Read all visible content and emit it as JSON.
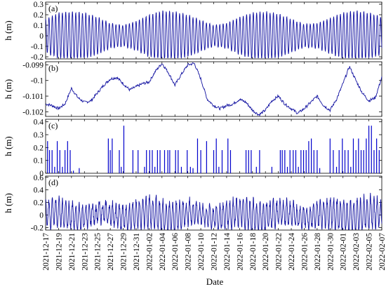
{
  "chart_data": [
    {
      "type": "line",
      "panel_label": "(a)",
      "ylabel": "h (m)",
      "ylim": [
        -0.22,
        0.32
      ],
      "yticks": [
        -0.2,
        -0.1,
        0,
        0.1,
        0.2,
        0.3
      ],
      "ytick_labels": [
        "-0.2",
        "-0.1",
        "0",
        "0.1",
        "0.2",
        "0.3"
      ],
      "series_color": "#1010a0",
      "series": [
        {
          "description_of_pattern": "semi-diurnal tide, spring/neap amplitude modulation",
          "x": [
            0,
            2,
            4,
            6,
            8,
            10,
            12,
            14,
            16,
            18,
            20,
            22,
            24,
            26,
            28,
            30,
            32,
            34,
            36,
            38,
            40,
            42,
            44,
            46,
            48,
            50,
            52
          ],
          "envelope": [
            0.16,
            0.22,
            0.23,
            0.22,
            0.18,
            0.12,
            0.1,
            0.14,
            0.2,
            0.24,
            0.23,
            0.2,
            0.15,
            0.1,
            0.12,
            0.18,
            0.22,
            0.23,
            0.21,
            0.16,
            0.11,
            0.12,
            0.17,
            0.22,
            0.24,
            0.22,
            0.18
          ]
        }
      ]
    },
    {
      "type": "line",
      "panel_label": "(b)",
      "ylabel": "h (m)",
      "ylim": [
        -0.1023,
        -0.0988
      ],
      "yticks": [
        -0.102,
        -0.101,
        -0.1,
        -0.099
      ],
      "ytick_labels": [
        "-0.102",
        "-0.101",
        "-0.1",
        "-0.099"
      ],
      "series_color": "#1010a0",
      "series": [
        {
          "x": [
            0,
            1,
            2,
            3,
            4,
            5,
            6,
            7,
            8,
            9,
            10,
            11,
            12,
            13,
            14,
            15,
            16,
            17,
            18,
            19,
            20,
            21,
            22,
            23,
            24,
            25,
            26,
            27,
            28,
            29,
            30,
            31,
            32,
            33,
            34,
            35,
            36,
            37,
            38,
            39,
            40,
            41,
            42,
            43,
            44,
            45,
            46,
            47,
            48,
            49,
            50,
            51,
            52
          ],
          "y": [
            -0.1015,
            -0.1016,
            -0.1018,
            -0.1015,
            -0.1005,
            -0.1011,
            -0.1014,
            -0.1013,
            -0.1008,
            -0.1003,
            -0.0999,
            -0.0998,
            -0.1002,
            -0.1006,
            -0.1004,
            -0.1002,
            -0.1001,
            -0.0994,
            -0.0989,
            -0.0995,
            -0.1003,
            -0.0996,
            -0.099,
            -0.0989,
            -0.0999,
            -0.1012,
            -0.1016,
            -0.1018,
            -0.1016,
            -0.1015,
            -0.1012,
            -0.1014,
            -0.1019,
            -0.1022,
            -0.1019,
            -0.1013,
            -0.101,
            -0.1015,
            -0.1018,
            -0.1021,
            -0.1018,
            -0.1014,
            -0.101,
            -0.1016,
            -0.1019,
            -0.1012,
            -0.1002,
            -0.0991,
            -0.1,
            -0.1008,
            -0.1013,
            -0.1011,
            -0.0998
          ]
        }
      ]
    },
    {
      "type": "bar",
      "panel_label": "(c)",
      "ylabel": "h (m)",
      "ylim": [
        0,
        0.42
      ],
      "yticks": [
        0,
        0.1,
        0.2,
        0.3,
        0.4
      ],
      "ytick_labels": [
        "0",
        "0.1",
        "0.2",
        "0.3",
        "0.4"
      ],
      "series_color": "#0000cc",
      "series": [
        {
          "x": [
            0.3,
            0.6,
            1.0,
            1.4,
            1.8,
            2.2,
            2.6,
            3.0,
            3.4,
            3.8,
            4.3,
            5.2,
            9.7,
            10.0,
            10.3,
            11.4,
            11.7,
            12.1,
            13.5,
            14.3,
            15.3,
            15.6,
            16.1,
            16.5,
            16.9,
            17.3,
            17.7,
            18.4,
            18.9,
            19.2,
            20.1,
            20.5,
            21.0,
            21.9,
            22.4,
            22.8,
            23.5,
            24.0,
            24.9,
            26.0,
            26.4,
            26.8,
            27.3,
            28.2,
            28.6,
            31.0,
            31.4,
            31.8,
            32.6,
            33.1,
            35.0,
            36.3,
            36.6,
            37.0,
            37.4,
            37.8,
            38.3,
            38.7,
            39.1,
            39.5,
            39.9,
            40.3,
            40.7,
            41.1,
            41.5,
            42.0,
            42.4,
            44.0,
            44.5,
            45.0,
            45.4,
            45.9,
            46.3,
            46.8,
            47.2,
            47.6,
            48.0,
            48.4,
            48.8,
            49.2,
            49.6,
            50.0,
            50.4,
            50.8,
            51.2,
            51.6
          ],
          "y": [
            0.25,
            0.18,
            0.18,
            0.05,
            0.25,
            0.18,
            0.05,
            0.18,
            0.25,
            0.18,
            0.02,
            0.04,
            0.27,
            0.18,
            0.27,
            0.18,
            0.05,
            0.37,
            0.18,
            0.18,
            0.05,
            0.18,
            0.18,
            0.18,
            0.05,
            0.18,
            0.18,
            0.18,
            0.18,
            0.18,
            0.18,
            0.18,
            0.05,
            0.18,
            0.05,
            0.04,
            0.27,
            0.18,
            0.25,
            0.18,
            0.27,
            0.05,
            0.18,
            0.27,
            0.18,
            0.18,
            0.18,
            0.18,
            0.05,
            0.18,
            0.05,
            0.18,
            0.18,
            0.18,
            0.05,
            0.18,
            0.18,
            0.18,
            0.05,
            0.18,
            0.18,
            0.18,
            0.25,
            0.27,
            0.18,
            0.18,
            0.04,
            0.27,
            0.18,
            0.05,
            0.18,
            0.27,
            0.18,
            0.18,
            0.05,
            0.27,
            0.18,
            0.27,
            0.18,
            0.18,
            0.27,
            0.37,
            0.37,
            0.18,
            0.27,
            0.18
          ]
        }
      ]
    },
    {
      "type": "line",
      "panel_label": "(d)",
      "ylabel": "h (m)",
      "ylim": [
        -0.24,
        0.62
      ],
      "yticks": [
        -0.2,
        0,
        0.2,
        0.4,
        0.6
      ],
      "ytick_labels": [
        "-0.2",
        "0",
        "0.2",
        "0.4",
        "0.6"
      ],
      "series_color": "#1010a0",
      "series": [
        {
          "description_of_pattern": "tide plus surge residual, noisier than panel (a)",
          "x": [
            0,
            4,
            8,
            12,
            16,
            20,
            24,
            28,
            32,
            36,
            40,
            44,
            48,
            52
          ],
          "envelope": [
            0.22,
            0.2,
            0.14,
            0.18,
            0.25,
            0.24,
            0.14,
            0.2,
            0.25,
            0.2,
            0.16,
            0.23,
            0.27,
            0.22
          ]
        }
      ]
    }
  ],
  "x_axis": {
    "label": "Date",
    "days_span": 52,
    "tick_labels": [
      "2021-12-17",
      "2021-12-19",
      "2021-12-21",
      "2021-12-23",
      "2021-12-25",
      "2021-12-27",
      "2021-12-29",
      "2021-12-31",
      "2022-01-02",
      "2022-01-04",
      "2022-01-06",
      "2022-01-08",
      "2022-01-10",
      "2022-01-12",
      "2022-01-14",
      "2022-01-16",
      "2022-01-18",
      "2022-01-20",
      "2022-01-22",
      "2022-01-24",
      "2022-01-26",
      "2022-01-28",
      "2022-01-30",
      "2022-02-01",
      "2022-02-03",
      "2022-02-05",
      "2022-02-07"
    ],
    "grid": false
  }
}
